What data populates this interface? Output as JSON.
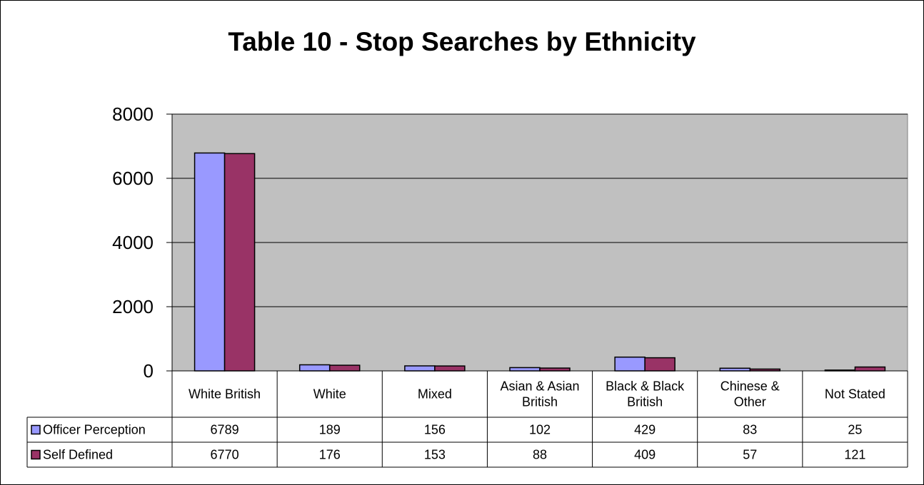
{
  "chart_data": {
    "type": "bar",
    "title": "Table 10 - Stop Searches by Ethnicity",
    "categories": [
      [
        "White British"
      ],
      [
        "White"
      ],
      [
        "Mixed"
      ],
      [
        "Asian & Asian",
        "British"
      ],
      [
        "Black & Black",
        "British"
      ],
      [
        "Chinese &",
        "Other"
      ],
      [
        "Not Stated"
      ]
    ],
    "series": [
      {
        "name": "Officer Perception",
        "color": "#9999ff",
        "values": [
          6789,
          189,
          156,
          102,
          429,
          83,
          25
        ]
      },
      {
        "name": "Self Defined",
        "color": "#993366",
        "values": [
          6770,
          176,
          153,
          88,
          409,
          57,
          121
        ]
      }
    ],
    "ylim": [
      0,
      8000
    ],
    "yticks": [
      0,
      2000,
      4000,
      6000,
      8000
    ],
    "grid": true,
    "plot_background": "#c0c0c0",
    "data_table": true,
    "legend": "data-table-left"
  }
}
